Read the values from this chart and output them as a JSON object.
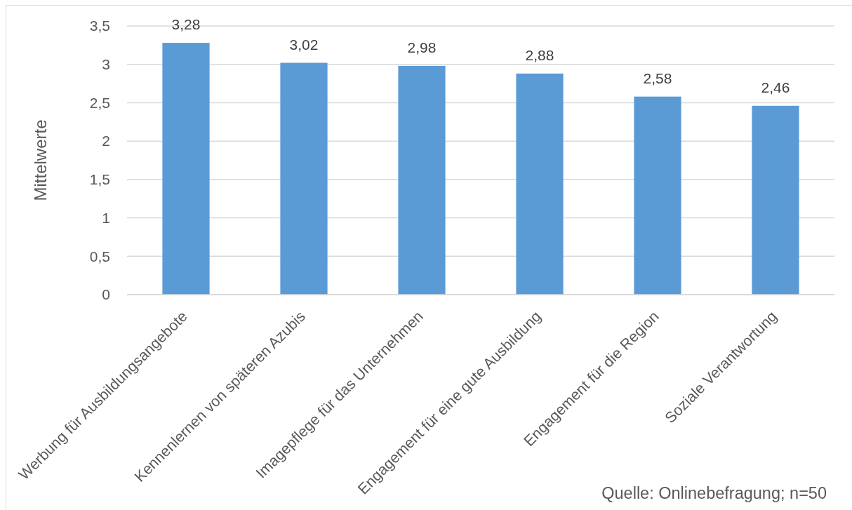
{
  "chart_data": {
    "type": "bar",
    "ylabel": "Mittelwerte",
    "categories": [
      "Werbung für Ausbildungsangebote",
      "Kennenlernen von späteren Azubis",
      "Imagepflege für das Unternehmen",
      "Engagement für eine gute Ausbildung",
      "Engagement für die Region",
      "Soziale Verantwortung"
    ],
    "values": [
      3.28,
      3.02,
      2.98,
      2.88,
      2.58,
      2.46
    ],
    "color": "#5b9bd5",
    "value_labels": [
      "3,28",
      "3,02",
      "2,98",
      "2,88",
      "2,58",
      "2,46"
    ],
    "ylim": [
      0,
      3.5
    ],
    "yticks": [
      0,
      {
        "value": 0.5,
        "label": "0,5"
      },
      1,
      {
        "value": 1.5,
        "label": "1,5"
      },
      2,
      {
        "value": 2.5,
        "label": "2,5"
      },
      3,
      {
        "value": 3.5,
        "label": "3,5"
      }
    ],
    "grid": "y",
    "annotations": [
      "Quelle: Onlinebefragung; n=50"
    ]
  }
}
